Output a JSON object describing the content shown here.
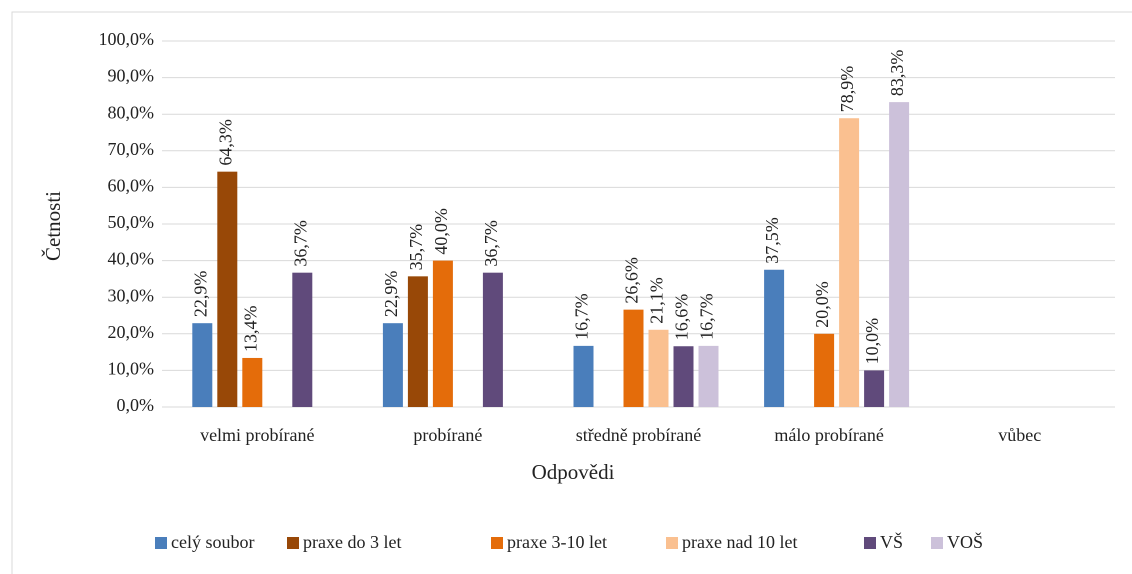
{
  "chart_data": {
    "type": "bar",
    "x_label": "Odpovědi",
    "y_label": "Četnosti",
    "categories": [
      "velmi probírané",
      "probírané",
      "středně probírané",
      "málo probírané",
      "vůbec"
    ],
    "series": [
      {
        "name": "celý soubor",
        "color": "#4a7ebb",
        "values": [
          22.9,
          22.9,
          16.7,
          37.5,
          null
        ],
        "value_labels": [
          "22,9%",
          "22,9%",
          "16,7%",
          "37,5%",
          null
        ]
      },
      {
        "name": "praxe do 3 let",
        "color": "#984807",
        "values": [
          64.3,
          35.7,
          null,
          null,
          null
        ],
        "value_labels": [
          "64,3%",
          "35,7%",
          null,
          null,
          null
        ]
      },
      {
        "name": "praxe 3-10 let",
        "color": "#e46c0a",
        "values": [
          13.4,
          40.0,
          26.6,
          20.0,
          null
        ],
        "value_labels": [
          "13,4%",
          "40,0%",
          "26,6%",
          "20,0%",
          null
        ]
      },
      {
        "name": "praxe nad 10 let",
        "color": "#fac090",
        "values": [
          null,
          null,
          21.1,
          78.9,
          null
        ],
        "value_labels": [
          null,
          null,
          "21,1%",
          "78,9%",
          null
        ]
      },
      {
        "name": "VŠ",
        "color": "#604a7b",
        "values": [
          36.7,
          36.7,
          16.6,
          10.0,
          null
        ],
        "value_labels": [
          "36,7%",
          "36,7%",
          "16,6%",
          "10,0%",
          null
        ]
      },
      {
        "name": "VOŠ",
        "color": "#ccc1da",
        "values": [
          null,
          null,
          16.7,
          83.3,
          null
        ],
        "value_labels": [
          null,
          null,
          "16,7%",
          "83,3%",
          null
        ]
      }
    ],
    "ylim": [
      0,
      100
    ],
    "yticks": [
      {
        "value": 0,
        "label": "0,0%"
      },
      {
        "value": 10,
        "label": "10,0%"
      },
      {
        "value": 20,
        "label": "20,0%"
      },
      {
        "value": 30,
        "label": "30,0%"
      },
      {
        "value": 40,
        "label": "40,0%"
      },
      {
        "value": 50,
        "label": "50,0%"
      },
      {
        "value": 60,
        "label": "60,0%"
      },
      {
        "value": 70,
        "label": "70,0%"
      },
      {
        "value": 80,
        "label": "80,0%"
      },
      {
        "value": 90,
        "label": "90,0%"
      },
      {
        "value": 100,
        "label": "100,0%"
      }
    ],
    "grid": true,
    "legend": "bottom"
  }
}
